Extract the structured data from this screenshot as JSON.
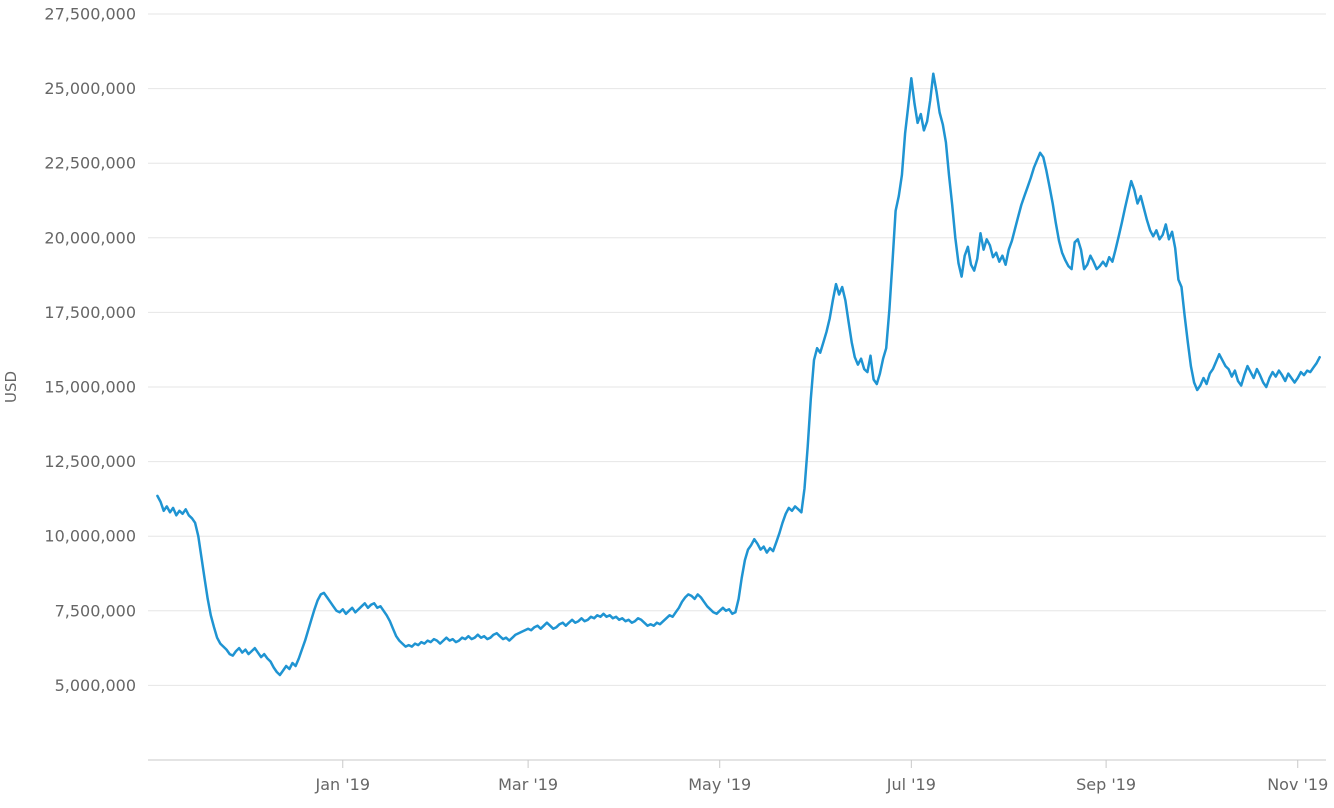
{
  "chart_data": {
    "type": "line",
    "title": "",
    "ylabel": "USD",
    "xlabel": "",
    "legend": "none",
    "grid": "horizontal",
    "y_unit_multiplier": 1000000,
    "values_unit": "millions of USD per day",
    "y_axis": {
      "min": 2500000,
      "max": 27500000,
      "ticks": [
        {
          "value": 5000000,
          "label": "5,000,000"
        },
        {
          "value": 7500000,
          "label": "7,500,000"
        },
        {
          "value": 10000000,
          "label": "10,000,000"
        },
        {
          "value": 12500000,
          "label": "12,500,000"
        },
        {
          "value": 15000000,
          "label": "15,000,000"
        },
        {
          "value": 17500000,
          "label": "17,500,000"
        },
        {
          "value": 20000000,
          "label": "20,000,000"
        },
        {
          "value": 22500000,
          "label": "22,500,000"
        },
        {
          "value": 25000000,
          "label": "25,000,000"
        },
        {
          "value": 27500000,
          "label": "27,500,000"
        }
      ]
    },
    "x_axis": {
      "domain_days": [
        -3,
        372
      ],
      "ticks": [
        {
          "day": 59,
          "label": "Jan '19"
        },
        {
          "day": 118,
          "label": "Mar '19"
        },
        {
          "day": 179,
          "label": "May '19"
        },
        {
          "day": 240,
          "label": "Jul '19"
        },
        {
          "day": 302,
          "label": "Sep '19"
        },
        {
          "day": 363,
          "label": "Nov '19"
        }
      ]
    },
    "series": {
      "name": "USD",
      "color": "#1f94d2",
      "stroke_width": 2.5
    },
    "colors": {
      "background": "#ffffff",
      "gridline": "#e6e6e6",
      "axis_line": "#c9c9c9",
      "tick_label": "#666666"
    },
    "values": [
      11.35,
      11.15,
      10.85,
      11.0,
      10.8,
      10.95,
      10.7,
      10.85,
      10.75,
      10.9,
      10.7,
      10.6,
      10.45,
      10.0,
      9.3,
      8.6,
      7.9,
      7.35,
      6.95,
      6.6,
      6.4,
      6.3,
      6.2,
      6.05,
      6.0,
      6.15,
      6.25,
      6.1,
      6.2,
      6.05,
      6.15,
      6.25,
      6.1,
      5.95,
      6.05,
      5.9,
      5.8,
      5.6,
      5.45,
      5.35,
      5.5,
      5.65,
      5.55,
      5.75,
      5.65,
      5.9,
      6.2,
      6.5,
      6.85,
      7.2,
      7.55,
      7.85,
      8.05,
      8.1,
      7.95,
      7.8,
      7.65,
      7.5,
      7.45,
      7.55,
      7.4,
      7.5,
      7.6,
      7.45,
      7.55,
      7.65,
      7.75,
      7.6,
      7.7,
      7.75,
      7.6,
      7.65,
      7.5,
      7.35,
      7.15,
      6.9,
      6.65,
      6.5,
      6.4,
      6.3,
      6.35,
      6.3,
      6.4,
      6.35,
      6.45,
      6.4,
      6.5,
      6.45,
      6.55,
      6.5,
      6.4,
      6.5,
      6.6,
      6.5,
      6.55,
      6.45,
      6.5,
      6.6,
      6.55,
      6.65,
      6.55,
      6.6,
      6.7,
      6.6,
      6.65,
      6.55,
      6.6,
      6.7,
      6.75,
      6.65,
      6.55,
      6.6,
      6.5,
      6.6,
      6.7,
      6.75,
      6.8,
      6.85,
      6.9,
      6.85,
      6.95,
      7.0,
      6.9,
      7.0,
      7.1,
      7.0,
      6.9,
      6.95,
      7.05,
      7.1,
      7.0,
      7.1,
      7.2,
      7.1,
      7.15,
      7.25,
      7.15,
      7.2,
      7.3,
      7.25,
      7.35,
      7.3,
      7.4,
      7.3,
      7.35,
      7.25,
      7.3,
      7.2,
      7.25,
      7.15,
      7.2,
      7.1,
      7.15,
      7.25,
      7.2,
      7.1,
      7.0,
      7.05,
      7.0,
      7.1,
      7.05,
      7.15,
      7.25,
      7.35,
      7.3,
      7.45,
      7.6,
      7.8,
      7.95,
      8.05,
      8.0,
      7.9,
      8.05,
      7.95,
      7.8,
      7.65,
      7.55,
      7.45,
      7.4,
      7.5,
      7.6,
      7.5,
      7.55,
      7.4,
      7.45,
      7.9,
      8.6,
      9.2,
      9.55,
      9.7,
      9.9,
      9.75,
      9.55,
      9.65,
      9.45,
      9.6,
      9.5,
      9.8,
      10.1,
      10.45,
      10.75,
      10.95,
      10.85,
      11.0,
      10.9,
      10.8,
      11.6,
      13.0,
      14.6,
      15.9,
      16.3,
      16.15,
      16.5,
      16.85,
      17.3,
      17.9,
      18.45,
      18.1,
      18.35,
      17.9,
      17.2,
      16.5,
      16.0,
      15.75,
      15.95,
      15.6,
      15.5,
      16.05,
      15.25,
      15.1,
      15.45,
      15.95,
      16.3,
      17.6,
      19.2,
      20.9,
      21.4,
      22.1,
      23.5,
      24.4,
      25.35,
      24.5,
      23.85,
      24.15,
      23.6,
      23.9,
      24.6,
      25.5,
      24.9,
      24.2,
      23.8,
      23.2,
      22.1,
      21.1,
      20.0,
      19.15,
      18.7,
      19.4,
      19.7,
      19.1,
      18.9,
      19.3,
      20.15,
      19.6,
      19.95,
      19.75,
      19.35,
      19.5,
      19.2,
      19.4,
      19.1,
      19.6,
      19.9,
      20.3,
      20.7,
      21.1,
      21.4,
      21.7,
      22.0,
      22.35,
      22.6,
      22.85,
      22.7,
      22.25,
      21.7,
      21.15,
      20.5,
      19.9,
      19.5,
      19.25,
      19.05,
      18.95,
      19.85,
      19.95,
      19.6,
      18.95,
      19.1,
      19.4,
      19.2,
      18.95,
      19.05,
      19.2,
      19.05,
      19.35,
      19.2,
      19.6,
      20.05,
      20.5,
      21.0,
      21.45,
      21.9,
      21.6,
      21.15,
      21.4,
      21.0,
      20.6,
      20.25,
      20.05,
      20.25,
      19.95,
      20.1,
      20.45,
      19.95,
      20.2,
      19.65,
      18.6,
      18.35,
      17.4,
      16.5,
      15.7,
      15.15,
      14.9,
      15.05,
      15.3,
      15.1,
      15.45,
      15.6,
      15.85,
      16.1,
      15.9,
      15.7,
      15.6,
      15.35,
      15.55,
      15.2,
      15.05,
      15.4,
      15.7,
      15.5,
      15.3,
      15.6,
      15.4,
      15.15,
      15.0,
      15.3,
      15.5,
      15.35,
      15.55,
      15.4,
      15.2,
      15.45,
      15.3,
      15.15,
      15.3,
      15.5,
      15.4,
      15.55,
      15.5,
      15.65,
      15.8,
      16.0
    ]
  }
}
